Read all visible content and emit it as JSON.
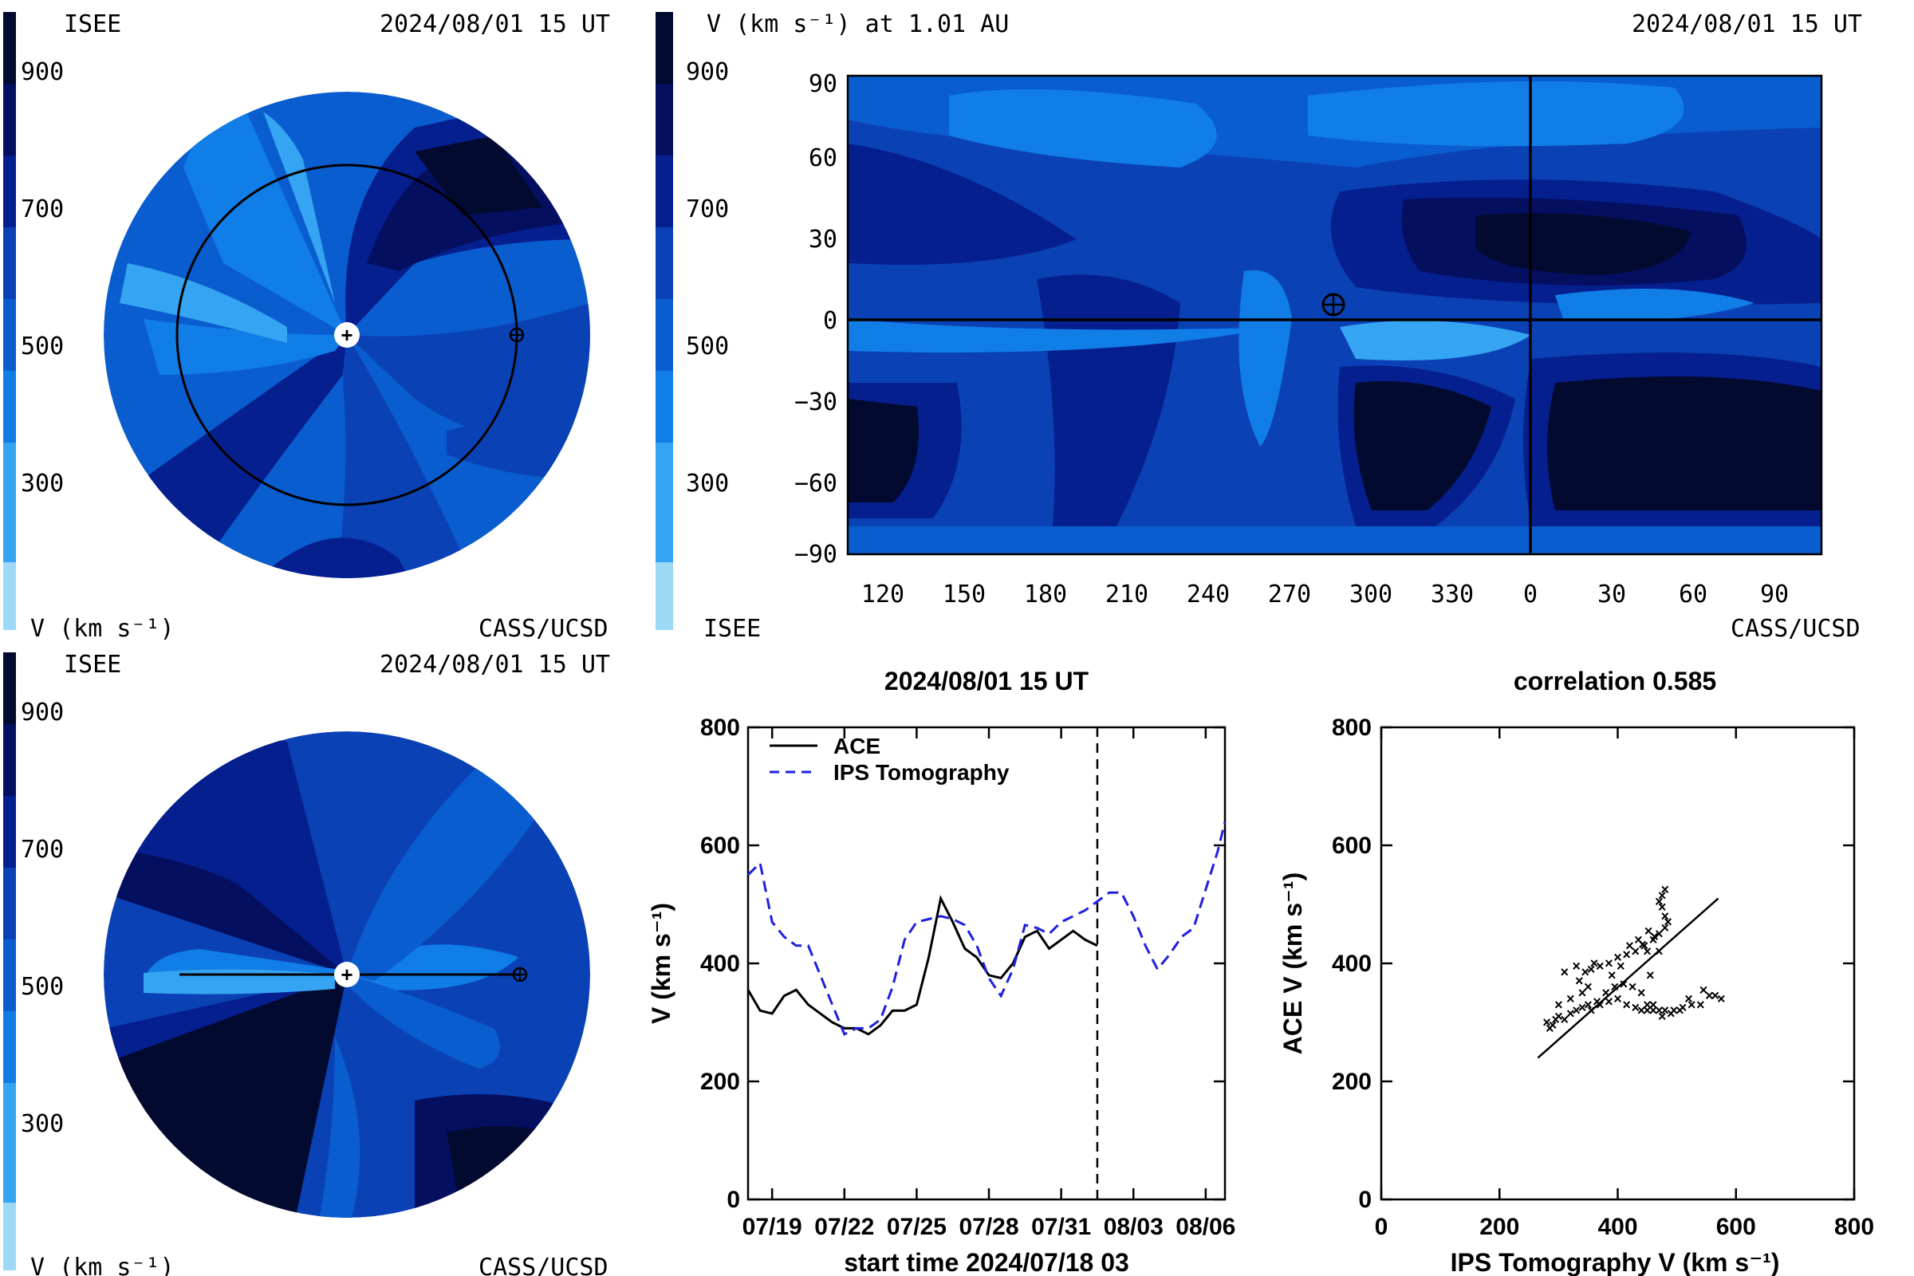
{
  "colors": {
    "scale": [
      "#9ed8f7",
      "#35a4f2",
      "#117de6",
      "#0a5dcf",
      "#0a42b5",
      "#061f8f",
      "#050f60",
      "#030a30"
    ],
    "ips_dashed": "#1f1fe0"
  },
  "panel_top_left": {
    "label_left": "ISEE",
    "timestamp": "2024/08/01 15 UT",
    "colorbar_ticks": [
      "900",
      "700",
      "500",
      "300"
    ],
    "units": "V (km s⁻¹)",
    "credit": "CASS/UCSD"
  },
  "panel_top_right": {
    "title": "V (km s⁻¹) at 1.01 AU",
    "timestamp": "2024/08/01 15 UT",
    "colorbar_ticks": [
      "900",
      "700",
      "500",
      "300"
    ],
    "label_left": "ISEE",
    "credit": "CASS/UCSD",
    "x_ticks": [
      "120",
      "150",
      "180",
      "210",
      "240",
      "270",
      "300",
      "330",
      "0",
      "30",
      "60",
      "90"
    ],
    "y_ticks": [
      "90",
      "60",
      "30",
      "0",
      "−30",
      "−60",
      "−90"
    ]
  },
  "panel_bottom_left": {
    "label_left": "ISEE",
    "timestamp": "2024/08/01 15 UT",
    "colorbar_ticks": [
      "900",
      "700",
      "500",
      "300"
    ],
    "units": "V (km s⁻¹)",
    "credit": "CASS/UCSD"
  },
  "chart_data": [
    {
      "type": "line",
      "title": "2024/08/01 15 UT",
      "xlabel": "start time 2024/07/18 03",
      "ylabel": "V (km s⁻¹)",
      "x_tick_labels": [
        "07/19",
        "07/22",
        "07/25",
        "07/28",
        "07/31",
        "08/03",
        "08/06"
      ],
      "y_ticks": [
        0,
        200,
        400,
        600,
        800
      ],
      "ylim": [
        0,
        800
      ],
      "xlim_days": [
        0,
        19.8
      ],
      "marker_day": 14.5,
      "legend": [
        "ACE",
        "IPS Tomography"
      ],
      "series": [
        {
          "name": "ACE",
          "x": [
            0,
            0.5,
            1,
            1.5,
            2,
            2.5,
            3,
            3.5,
            4,
            4.5,
            5,
            5.5,
            6,
            6.5,
            7,
            7.5,
            8,
            8.5,
            9,
            9.5,
            10,
            10.5,
            11,
            11.5,
            12,
            12.5,
            13,
            13.5,
            14,
            14.5
          ],
          "values": [
            355,
            320,
            315,
            345,
            355,
            330,
            315,
            300,
            290,
            290,
            280,
            295,
            320,
            320,
            330,
            410,
            510,
            470,
            425,
            410,
            380,
            375,
            400,
            445,
            455,
            425,
            440,
            455,
            440,
            430
          ]
        },
        {
          "name": "IPS Tomography",
          "x": [
            0,
            0.5,
            1,
            1.5,
            2,
            2.5,
            3,
            3.5,
            4,
            4.5,
            5,
            5.5,
            6,
            6.5,
            7,
            7.5,
            8,
            8.5,
            9,
            9.5,
            10,
            10.5,
            11,
            11.5,
            12,
            12.5,
            13,
            13.5,
            14,
            14.5,
            15,
            15.5,
            16,
            16.5,
            17,
            17.5,
            18,
            18.5,
            19,
            19.5,
            19.8
          ],
          "values": [
            550,
            570,
            470,
            445,
            430,
            430,
            380,
            330,
            280,
            290,
            290,
            305,
            360,
            440,
            470,
            475,
            480,
            475,
            465,
            430,
            375,
            345,
            390,
            465,
            460,
            450,
            470,
            480,
            490,
            505,
            520,
            520,
            480,
            430,
            390,
            415,
            445,
            460,
            525,
            590,
            640
          ]
        }
      ]
    },
    {
      "type": "scatter",
      "title": "correlation 0.585",
      "xlabel": "IPS Tomography V (km s⁻¹)",
      "ylabel": "ACE V (km s⁻¹)",
      "xlim": [
        0,
        800
      ],
      "ylim": [
        0,
        800
      ],
      "x_ticks": [
        0,
        200,
        400,
        600,
        800
      ],
      "y_ticks": [
        0,
        200,
        400,
        600,
        800
      ],
      "fit_line": [
        [
          265,
          240
        ],
        [
          570,
          510
        ]
      ],
      "points": [
        [
          280,
          300
        ],
        [
          285,
          290
        ],
        [
          290,
          295
        ],
        [
          295,
          305
        ],
        [
          300,
          310
        ],
        [
          310,
          305
        ],
        [
          320,
          315
        ],
        [
          330,
          320
        ],
        [
          340,
          325
        ],
        [
          355,
          320
        ],
        [
          370,
          330
        ],
        [
          385,
          335
        ],
        [
          400,
          340
        ],
        [
          415,
          330
        ],
        [
          430,
          325
        ],
        [
          440,
          320
        ],
        [
          450,
          320
        ],
        [
          460,
          330
        ],
        [
          470,
          320
        ],
        [
          480,
          320
        ],
        [
          495,
          320
        ],
        [
          510,
          325
        ],
        [
          525,
          330
        ],
        [
          540,
          330
        ],
        [
          555,
          345
        ],
        [
          565,
          345
        ],
        [
          575,
          340
        ],
        [
          545,
          355
        ],
        [
          520,
          340
        ],
        [
          505,
          320
        ],
        [
          490,
          315
        ],
        [
          475,
          310
        ],
        [
          460,
          320
        ],
        [
          450,
          330
        ],
        [
          440,
          350
        ],
        [
          425,
          360
        ],
        [
          410,
          365
        ],
        [
          395,
          360
        ],
        [
          380,
          350
        ],
        [
          365,
          335
        ],
        [
          350,
          330
        ],
        [
          340,
          350
        ],
        [
          335,
          370
        ],
        [
          345,
          385
        ],
        [
          355,
          390
        ],
        [
          370,
          395
        ],
        [
          385,
          400
        ],
        [
          400,
          410
        ],
        [
          415,
          415
        ],
        [
          430,
          420
        ],
        [
          445,
          430
        ],
        [
          460,
          440
        ],
        [
          470,
          450
        ],
        [
          480,
          460
        ],
        [
          485,
          470
        ],
        [
          480,
          480
        ],
        [
          475,
          495
        ],
        [
          470,
          505
        ],
        [
          475,
          515
        ],
        [
          480,
          525
        ],
        [
          450,
          420
        ],
        [
          435,
          440
        ],
        [
          420,
          430
        ],
        [
          405,
          395
        ],
        [
          390,
          380
        ],
        [
          360,
          400
        ],
        [
          330,
          395
        ],
        [
          310,
          385
        ],
        [
          350,
          360
        ],
        [
          455,
          380
        ],
        [
          470,
          420
        ],
        [
          462,
          445
        ],
        [
          452,
          455
        ],
        [
          442,
          432
        ],
        [
          300,
          330
        ],
        [
          320,
          340
        ]
      ]
    }
  ]
}
